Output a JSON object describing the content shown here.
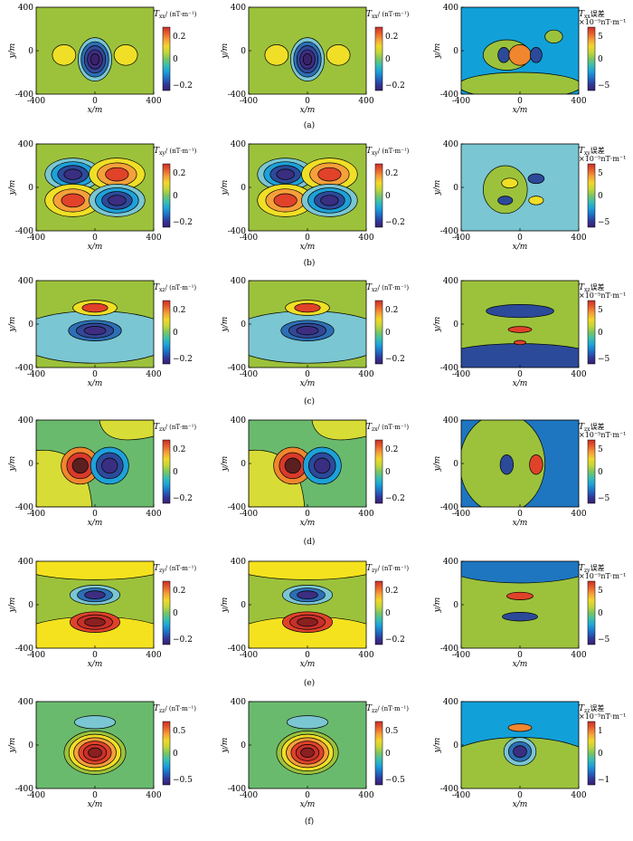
{
  "chart_data": {
    "type": "contour",
    "layout": {
      "rows": 6,
      "cols": 3
    },
    "xlim": [
      -400,
      400
    ],
    "ylim": [
      -400,
      400
    ],
    "x_ticks": [
      -400,
      0,
      400
    ],
    "y_ticks": [
      -400,
      0,
      400
    ],
    "xlabel": "x/m",
    "ylabel": "y/m",
    "rows": [
      {
        "caption": "(a)",
        "component": "xx",
        "colorbar_main": {
          "ticks": [
            "0.2",
            "0",
            "−0.2"
          ],
          "range": [
            -0.3,
            0.3
          ],
          "title_var": "T",
          "title_sub": "xx",
          "title_unit": "/ (nT·m⁻¹)"
        },
        "colorbar_err": {
          "ticks": [
            "5",
            "0",
            "−5"
          ],
          "range": [
            -6,
            6
          ],
          "title_var": "T",
          "title_sub": "xx",
          "title_suffix": "误差",
          "title_unit": "×10⁻⁵nT·m⁻¹"
        },
        "background": "#9cc23c",
        "blobs": [
          {
            "x": 0,
            "y": -80,
            "rx": 115,
            "ry": 200,
            "levels": [
              "#7ac6d2",
              "#2c6fb5",
              "#334896",
              "#3d2e82",
              "#38236b"
            ]
          },
          {
            "x": -210,
            "y": -40,
            "rx": 80,
            "ry": 95,
            "levels": [
              "#f0df26"
            ]
          },
          {
            "x": 210,
            "y": -40,
            "rx": 80,
            "ry": 95,
            "levels": [
              "#f0df26"
            ]
          }
        ],
        "err_background": "#12a0d8",
        "err_blobs": [
          {
            "x": 0,
            "y": -320,
            "rx": 420,
            "ry": 120,
            "levels": [
              "#9cc23c"
            ]
          },
          {
            "x": -90,
            "y": -40,
            "rx": 160,
            "ry": 140,
            "levels": [
              "#9cc23c"
            ]
          },
          {
            "x": -110,
            "y": -40,
            "rx": 40,
            "ry": 70,
            "levels": [
              "#2c4a9a"
            ]
          },
          {
            "x": 0,
            "y": -40,
            "rx": 75,
            "ry": 95,
            "levels": [
              "#f0862e"
            ]
          },
          {
            "x": 110,
            "y": -40,
            "rx": 40,
            "ry": 70,
            "levels": [
              "#2c4a9a"
            ]
          },
          {
            "x": 230,
            "y": 130,
            "rx": 60,
            "ry": 60,
            "levels": [
              "#9cc23c"
            ]
          }
        ]
      },
      {
        "caption": "(b)",
        "component": "xy",
        "colorbar_main": {
          "ticks": [
            "0.2",
            "0",
            "−0.2"
          ],
          "range": [
            -0.3,
            0.3
          ],
          "title_var": "T",
          "title_sub": "xy",
          "title_unit": "/ (nT·m⁻¹)"
        },
        "colorbar_err": {
          "ticks": [
            "5",
            "0",
            "−5"
          ],
          "range": [
            -6,
            6
          ],
          "title_var": "T",
          "title_sub": "xy",
          "title_suffix": "误差",
          "title_unit": "×10⁻⁵nT·m⁻¹"
        },
        "background": "#9cc23c",
        "blobs": [
          {
            "x": -150,
            "y": 120,
            "rx": 190,
            "ry": 150,
            "levels": [
              "#7ac6d2",
              "#1ea1d8",
              "#2c4a9a",
              "#3a2e80"
            ]
          },
          {
            "x": 150,
            "y": 120,
            "rx": 190,
            "ry": 150,
            "levels": [
              "#f0df26",
              "#f5a03a",
              "#e0422a"
            ]
          },
          {
            "x": -150,
            "y": -120,
            "rx": 190,
            "ry": 150,
            "levels": [
              "#f0df26",
              "#f5a03a",
              "#e0422a"
            ]
          },
          {
            "x": 150,
            "y": -120,
            "rx": 190,
            "ry": 150,
            "levels": [
              "#7ac6d2",
              "#1ea1d8",
              "#2c4a9a",
              "#3a2e80"
            ]
          }
        ],
        "err_background": "#7ac6d2",
        "err_blobs": [
          {
            "x": -100,
            "y": -20,
            "rx": 150,
            "ry": 220,
            "levels": [
              "#9cc23c"
            ]
          },
          {
            "x": -70,
            "y": 40,
            "rx": 55,
            "ry": 45,
            "levels": [
              "#f0df26"
            ]
          },
          {
            "x": 110,
            "y": 80,
            "rx": 55,
            "ry": 45,
            "levels": [
              "#2c4a9a"
            ]
          },
          {
            "x": -100,
            "y": -120,
            "rx": 50,
            "ry": 40,
            "levels": [
              "#2c4a9a"
            ]
          },
          {
            "x": 110,
            "y": -120,
            "rx": 50,
            "ry": 40,
            "levels": [
              "#f0df26"
            ]
          }
        ]
      },
      {
        "caption": "(c)",
        "component": "xz",
        "colorbar_main": {
          "ticks": [
            "0.2",
            "0",
            "−0.2"
          ],
          "range": [
            -0.3,
            0.3
          ],
          "title_var": "T",
          "title_sub": "xz",
          "title_unit": "/ (nT·m⁻¹)"
        },
        "colorbar_err": {
          "ticks": [
            "5",
            "0",
            "−5"
          ],
          "range": [
            -6,
            6
          ],
          "title_var": "T",
          "title_sub": "xz",
          "title_suffix": "误差",
          "title_unit": "×10⁻⁵nT·m⁻¹"
        },
        "background": "#9cc23c",
        "blobs": [
          {
            "x": 0,
            "y": -120,
            "rx": 560,
            "ry": 240,
            "levels": [
              "#7ac6d2"
            ]
          },
          {
            "x": 0,
            "y": -60,
            "rx": 180,
            "ry": 95,
            "levels": [
              "#2c6fb5",
              "#334896",
              "#3d2e82"
            ]
          },
          {
            "x": 0,
            "y": 150,
            "rx": 150,
            "ry": 70,
            "levels": [
              "#f0df26",
              "#e0422a"
            ]
          }
        ],
        "err_background": "#9cc23c",
        "err_blobs": [
          {
            "x": 0,
            "y": -330,
            "rx": 560,
            "ry": 150,
            "levels": [
              "#2c4a9a"
            ]
          },
          {
            "x": 0,
            "y": 120,
            "rx": 230,
            "ry": 60,
            "levels": [
              "#2c4a9a"
            ]
          },
          {
            "x": 0,
            "y": -50,
            "rx": 80,
            "ry": 28,
            "levels": [
              "#e0422a"
            ]
          },
          {
            "x": 0,
            "y": -170,
            "rx": 40,
            "ry": 20,
            "levels": [
              "#e0422a"
            ]
          }
        ]
      },
      {
        "caption": "(d)",
        "component": "zx",
        "colorbar_main": {
          "ticks": [
            "0.2",
            "0",
            "−0.2"
          ],
          "range": [
            -0.3,
            0.3
          ],
          "title_var": "T",
          "title_sub": "zx",
          "title_unit": "/ (nT·m⁻¹)"
        },
        "colorbar_err": {
          "ticks": [
            "5",
            "0",
            "−5"
          ],
          "range": [
            -6,
            6
          ],
          "title_var": "T",
          "title_sub": "zx",
          "title_suffix": "误差",
          "title_unit": "×10⁻⁵nT·m⁻¹"
        },
        "background": "#6aba6e",
        "split_diag": true,
        "blobs": [
          {
            "x": -100,
            "y": -20,
            "rx": 130,
            "ry": 170,
            "levels": [
              "#f0862e",
              "#d93a2a",
              "#5a2020"
            ]
          },
          {
            "x": 100,
            "y": -20,
            "rx": 130,
            "ry": 170,
            "levels": [
              "#1ea1d8",
              "#2c4a9a",
              "#3a2e80"
            ]
          }
        ],
        "err_background": "#1e76c0",
        "err_blobs": [
          {
            "x": -120,
            "y": 0,
            "rx": 290,
            "ry": 460,
            "levels": [
              "#9cc23c"
            ]
          },
          {
            "x": -90,
            "y": -10,
            "rx": 45,
            "ry": 90,
            "levels": [
              "#2c4a9a"
            ]
          },
          {
            "x": 110,
            "y": -10,
            "rx": 45,
            "ry": 90,
            "levels": [
              "#e0422a"
            ]
          }
        ]
      },
      {
        "caption": "(e)",
        "component": "zy",
        "colorbar_main": {
          "ticks": [
            "0.2",
            "0",
            "−0.2"
          ],
          "range": [
            -0.3,
            0.3
          ],
          "title_var": "T",
          "title_sub": "zy",
          "title_unit": "/ (nT·m⁻¹)"
        },
        "colorbar_err": {
          "ticks": [
            "5",
            "0",
            "−5"
          ],
          "range": [
            -6,
            6
          ],
          "title_var": "T",
          "title_sub": "zy",
          "title_suffix": "误差",
          "title_unit": "×10⁻⁵nT·m⁻¹"
        },
        "background": "#9cc23c",
        "blobs": [
          {
            "x": 0,
            "y": 390,
            "rx": 560,
            "ry": 160,
            "levels": [
              "#f5e21e"
            ]
          },
          {
            "x": 0,
            "y": -330,
            "rx": 560,
            "ry": 220,
            "levels": [
              "#f5e21e"
            ]
          },
          {
            "x": 0,
            "y": 90,
            "rx": 170,
            "ry": 90,
            "levels": [
              "#7ac6d2",
              "#2c6fb5",
              "#3d2e82"
            ]
          },
          {
            "x": 0,
            "y": -160,
            "rx": 170,
            "ry": 95,
            "levels": [
              "#e0422a",
              "#c8302a",
              "#8a2020"
            ]
          }
        ],
        "err_background": "#9cc23c",
        "err_blobs": [
          {
            "x": 0,
            "y": 400,
            "rx": 560,
            "ry": 200,
            "levels": [
              "#1e76c0"
            ]
          },
          {
            "x": 0,
            "y": 80,
            "rx": 90,
            "ry": 35,
            "levels": [
              "#e0422a"
            ]
          },
          {
            "x": 0,
            "y": -110,
            "rx": 120,
            "ry": 40,
            "levels": [
              "#2c4a9a"
            ]
          }
        ]
      },
      {
        "caption": "(f)",
        "component": "zz",
        "colorbar_main": {
          "ticks": [
            "0.5",
            "0",
            "−0.5"
          ],
          "range": [
            -0.7,
            0.7
          ],
          "title_var": "T",
          "title_sub": "zz",
          "title_unit": "/ (nT·m⁻¹)"
        },
        "colorbar_err": {
          "ticks": [
            "1",
            "0",
            "−1"
          ],
          "range": [
            -1.2,
            1.2
          ],
          "title_var": "T",
          "title_sub": "zz",
          "title_suffix": "误差",
          "title_unit": "×10⁻⁵nT·m⁻¹"
        },
        "background": "#6aba6e",
        "blobs": [
          {
            "x": 0,
            "y": 210,
            "rx": 140,
            "ry": 60,
            "levels": [
              "#7ac6d2"
            ]
          },
          {
            "x": 0,
            "y": -70,
            "rx": 210,
            "ry": 200,
            "levels": [
              "#9cc23c",
              "#f0df26",
              "#f5a03a",
              "#e0422a",
              "#c8302a",
              "#8a2020"
            ]
          }
        ],
        "err_background": "#12a0d8",
        "err_blobs": [
          {
            "x": 0,
            "y": -220,
            "rx": 560,
            "ry": 290,
            "levels": [
              "#9cc23c"
            ]
          },
          {
            "x": 0,
            "y": 160,
            "rx": 80,
            "ry": 35,
            "levels": [
              "#f0862e"
            ]
          },
          {
            "x": 0,
            "y": -60,
            "rx": 110,
            "ry": 130,
            "levels": [
              "#7ac6d2",
              "#2c6fb5",
              "#3a2e80"
            ]
          }
        ]
      }
    ]
  }
}
